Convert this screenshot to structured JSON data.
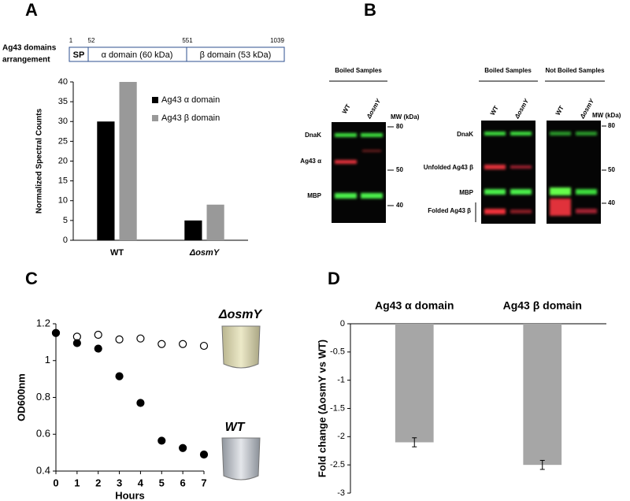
{
  "panel_labels": [
    "A",
    "B",
    "C",
    "D"
  ],
  "domain_diagram": {
    "title": [
      "Ag43 domains",
      "arrangement"
    ],
    "positions": [
      1,
      52,
      551,
      1039
    ],
    "domains": [
      "SP",
      "α domain (60 kDa)",
      "β domain (53 kDa)"
    ]
  },
  "blots": [
    {
      "headers": [
        "Boiled Samples"
      ],
      "lanes": [
        "WT",
        "ΔosmY"
      ],
      "mw_title": "MW (kDa)",
      "mw": [
        80,
        50,
        40
      ],
      "bands": [
        "DnaK",
        "Ag43 α",
        "MBP"
      ]
    },
    {
      "headers": [
        "Boiled Samples",
        "Not Boiled Samples"
      ],
      "lanes": [
        "WT",
        "ΔosmY",
        "WT",
        "ΔosmY"
      ],
      "mw_title": "MW (kDa)",
      "mw": [
        80,
        50,
        40
      ],
      "bands": [
        "DnaK",
        "Unfolded Ag43 β",
        "MBP",
        "Folded Ag43 β"
      ]
    }
  ],
  "chart_data": [
    {
      "type": "bar",
      "categories": [
        "WT",
        "ΔosmY"
      ],
      "series": [
        {
          "name": "Ag43 α domain",
          "color": "#000000",
          "values": [
            30,
            5
          ]
        },
        {
          "name": "Ag43 β domain",
          "color": "#999999",
          "values": [
            40,
            9
          ]
        }
      ],
      "ylabel": "Normalized Spectral Counts",
      "ylim": [
        0,
        40
      ],
      "yticks": [
        0,
        5,
        10,
        15,
        20,
        25,
        30,
        35,
        40
      ]
    },
    {
      "type": "scatter",
      "x": [
        0,
        1,
        2,
        3,
        4,
        5,
        6,
        7
      ],
      "series": [
        {
          "color": "#000000",
          "marker": "open",
          "values": [
            1.15,
            1.13,
            1.14,
            1.115,
            1.12,
            1.09,
            1.09,
            1.08
          ]
        },
        {
          "color": "#000000",
          "marker": "filled",
          "values": [
            1.15,
            1.095,
            1.065,
            0.915,
            0.77,
            0.565,
            0.525,
            0.49
          ]
        }
      ],
      "xlabel": "Hours",
      "ylabel": "OD600nm",
      "xlim": [
        0,
        7
      ],
      "ylim": [
        0.4,
        1.2
      ],
      "xticks": [
        0,
        1,
        2,
        3,
        4,
        5,
        6,
        7
      ],
      "yticks": [
        0.4,
        0.6,
        0.8,
        1,
        1.2
      ],
      "annotations": [
        "ΔosmY",
        "WT"
      ]
    },
    {
      "type": "bar",
      "categories": [
        "Ag43 α domain",
        "Ag43 β domain"
      ],
      "values": [
        -2.1,
        -2.5
      ],
      "errors": [
        0.08,
        0.08
      ],
      "color": "#a6a6a6",
      "ylabel": "Fold change (ΔosmY vs WT)",
      "ylim": [
        -3,
        0
      ],
      "yticks": [
        0,
        -0.5,
        -1,
        -1.5,
        -2,
        -2.5,
        -3
      ]
    }
  ]
}
